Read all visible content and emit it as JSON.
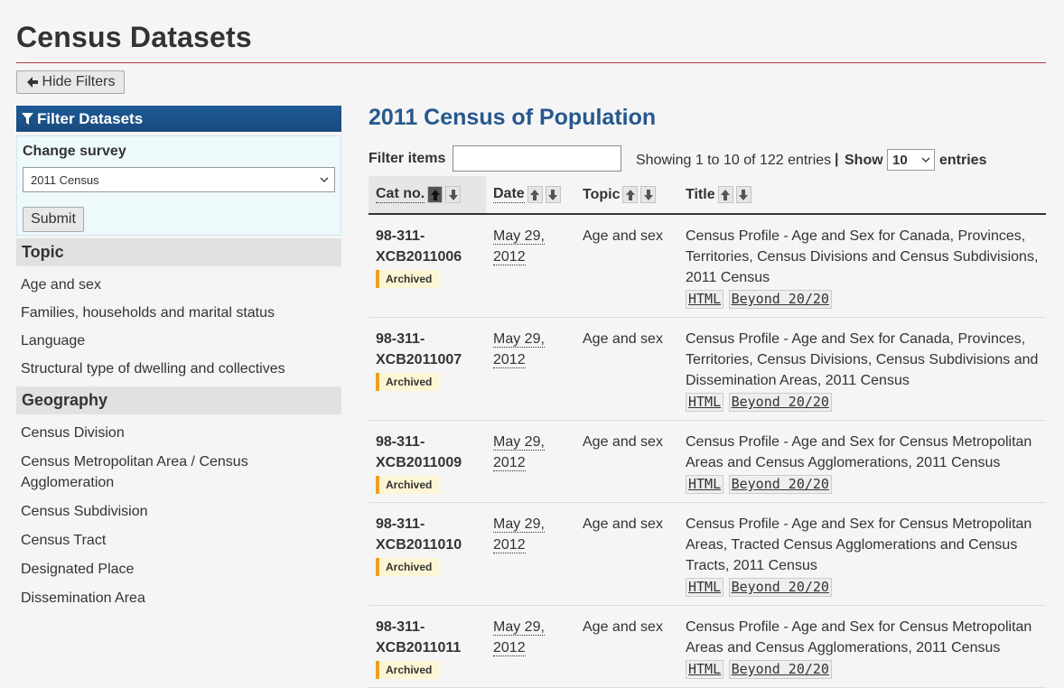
{
  "page": {
    "title": "Census Datasets"
  },
  "toolbar": {
    "hide_filters_label": "Hide Filters"
  },
  "sidebar": {
    "filter_heading": "Filter Datasets",
    "change_survey_label": "Change survey",
    "survey_selected": "2011 Census",
    "submit_label": "Submit",
    "topic_heading": "Topic",
    "topics": [
      "Age and sex",
      "Families, households and marital status",
      "Language",
      "Structural type of dwelling and collectives"
    ],
    "geography_heading": "Geography",
    "geographies": [
      "Census Division",
      "Census Metropolitan Area / Census Agglomeration",
      "Census Subdivision",
      "Census Tract",
      "Designated Place",
      "Dissemination Area"
    ]
  },
  "main": {
    "title": "2011 Census of Population",
    "filter_label": "Filter items",
    "filter_value": "",
    "showing_text": "Showing 1 to 10 of 122 entries",
    "separator": "|",
    "show_label": "Show",
    "page_length": "10",
    "entries_label": "entries",
    "columns": [
      "Cat no.",
      "Date",
      "Topic",
      "Title"
    ],
    "rows": [
      {
        "cat": [
          "98-311-",
          "XCB2011006"
        ],
        "badge": "Archived",
        "date": [
          "May 29,",
          "2012"
        ],
        "topic": "Age and sex",
        "title": "Census Profile - Age and Sex for Canada, Provinces, Territories, Census Divisions and Census Subdivisions, 2011 Census",
        "formats": [
          "HTML",
          "Beyond 20/20"
        ]
      },
      {
        "cat": [
          "98-311-",
          "XCB2011007"
        ],
        "badge": "Archived",
        "date": [
          "May 29,",
          "2012"
        ],
        "topic": "Age and sex",
        "title": "Census Profile - Age and Sex for Canada, Provinces, Territories, Census Divisions, Census Subdivisions and Dissemination Areas, 2011 Census",
        "formats": [
          "HTML",
          "Beyond 20/20"
        ]
      },
      {
        "cat": [
          "98-311-",
          "XCB2011009"
        ],
        "badge": "Archived",
        "date": [
          "May 29,",
          "2012"
        ],
        "topic": "Age and sex",
        "title": "Census Profile - Age and Sex for Census Metropolitan Areas and Census Agglomerations, 2011 Census",
        "formats": [
          "HTML",
          "Beyond 20/20"
        ]
      },
      {
        "cat": [
          "98-311-",
          "XCB2011010"
        ],
        "badge": "Archived",
        "date": [
          "May 29,",
          "2012"
        ],
        "topic": "Age and sex",
        "title": "Census Profile - Age and Sex for Census Metropolitan Areas, Tracted Census Agglomerations and Census Tracts, 2011 Census",
        "formats": [
          "HTML",
          "Beyond 20/20"
        ]
      },
      {
        "cat": [
          "98-311-",
          "XCB2011011"
        ],
        "badge": "Archived",
        "date": [
          "May 29,",
          "2012"
        ],
        "topic": "Age and sex",
        "title": "Census Profile - Age and Sex for Census Metropolitan Areas and Census Agglomerations, 2011 Census",
        "formats": [
          "HTML",
          "Beyond 20/20"
        ]
      }
    ]
  },
  "colors": {
    "accent_rule": "#af3c43",
    "heading_blue": "#26588e",
    "filter_bar": "#1a4a7e",
    "badge_border": "#f0a020"
  }
}
